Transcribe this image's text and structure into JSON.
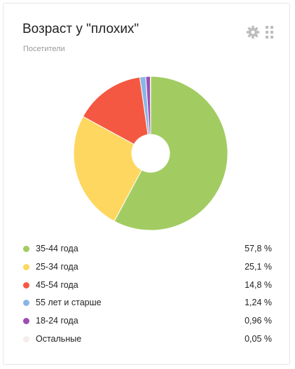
{
  "widget": {
    "title": "Возраст у \"плохих\"",
    "subtitle": "Посетители",
    "settings_icon": "gear-icon",
    "drag_icon": "drag-handle-icon"
  },
  "chart_data": {
    "type": "pie",
    "donut": true,
    "title": "Возраст у \"плохих\"",
    "legend_position": "bottom",
    "slices": [
      {
        "label": "35-44 года",
        "value": 57.8,
        "display": "57,8 %",
        "color": "#a2cc62"
      },
      {
        "label": "25-34 года",
        "value": 25.1,
        "display": "25,1 %",
        "color": "#fdd760"
      },
      {
        "label": "45-54 года",
        "value": 14.8,
        "display": "14,8 %",
        "color": "#f55842"
      },
      {
        "label": "55 лет и старше",
        "value": 1.24,
        "display": "1,24 %",
        "color": "#8ab6e6"
      },
      {
        "label": "18-24 года",
        "value": 0.96,
        "display": "0,96 %",
        "color": "#9b4fb4"
      },
      {
        "label": "Остальные",
        "value": 0.05,
        "display": "0,05 %",
        "color": "#f6ecec"
      }
    ]
  }
}
